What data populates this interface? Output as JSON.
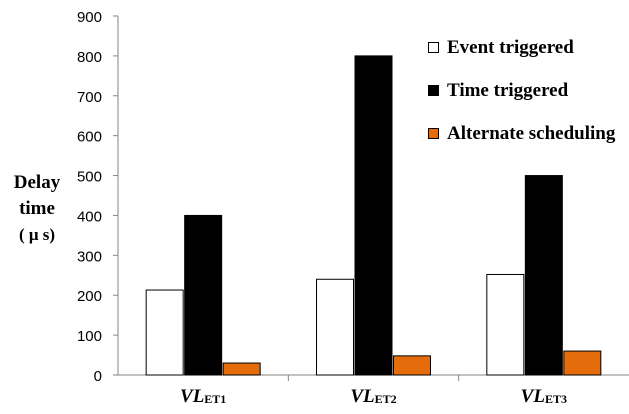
{
  "chart_data": {
    "type": "bar",
    "categories": [
      {
        "main": "VL",
        "sub": "ET1"
      },
      {
        "main": "VL",
        "sub": "ET2"
      },
      {
        "main": "VL",
        "sub": "ET3"
      }
    ],
    "series": [
      {
        "name": "Event triggered",
        "values": [
          213,
          240,
          252
        ],
        "color": "#ffffff"
      },
      {
        "name": "Time triggered",
        "values": [
          400,
          800,
          500
        ],
        "color": "#000000"
      },
      {
        "name": "Alternate scheduling",
        "values": [
          30,
          48,
          60
        ],
        "color": "#e46c0a"
      }
    ],
    "ylabel": [
      "Delay",
      "time",
      "( μ s)"
    ],
    "ylim": [
      0,
      900
    ],
    "yticks": [
      0,
      100,
      200,
      300,
      400,
      500,
      600,
      700,
      800,
      900
    ],
    "grid": false,
    "legend_position": "top-right"
  }
}
